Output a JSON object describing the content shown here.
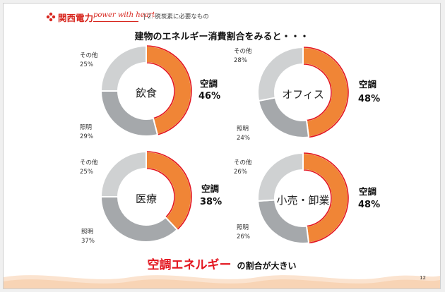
{
  "header": {
    "company": "関西電力",
    "tagline": "power with heart",
    "section": "| 2. 脱炭素に必要なもの"
  },
  "headline": "建物のエネルギー消費割合をみると・・・",
  "conclusion": {
    "emphasis": "空調エネルギー",
    "rest": "の割合が大きい"
  },
  "page_number": "12",
  "colors": {
    "brand": "#d7261e",
    "ac": "#f08536",
    "ac_outline": "#e3161f",
    "lighting": "#a5a8ab",
    "other": "#cfd1d2",
    "accent_text": "#e3161f"
  },
  "chart_data": [
    {
      "type": "pie",
      "title": "飲食",
      "categories": [
        "空調",
        "照明",
        "その他"
      ],
      "values": [
        46,
        29,
        25
      ],
      "display": {
        "ac_name": "空調",
        "ac_pct": "46%",
        "lighting_name": "照明",
        "lighting_pct": "29%",
        "other_name": "その他",
        "other_pct": "25%"
      }
    },
    {
      "type": "pie",
      "title": "オフィス",
      "categories": [
        "空調",
        "照明",
        "その他"
      ],
      "values": [
        48,
        24,
        28
      ],
      "display": {
        "ac_name": "空調",
        "ac_pct": "48%",
        "lighting_name": "照明",
        "lighting_pct": "24%",
        "other_name": "その他",
        "other_pct": "28%"
      }
    },
    {
      "type": "pie",
      "title": "医療",
      "categories": [
        "空調",
        "照明",
        "その他"
      ],
      "values": [
        38,
        37,
        25
      ],
      "display": {
        "ac_name": "空調",
        "ac_pct": "38%",
        "lighting_name": "照明",
        "lighting_pct": "37%",
        "other_name": "その他",
        "other_pct": "25%"
      }
    },
    {
      "type": "pie",
      "title": "小売・卸業",
      "categories": [
        "空調",
        "照明",
        "その他"
      ],
      "values": [
        48,
        26,
        26
      ],
      "display": {
        "ac_name": "空調",
        "ac_pct": "48%",
        "lighting_name": "照明",
        "lighting_pct": "26%",
        "other_name": "その他",
        "other_pct": "26%"
      }
    }
  ]
}
